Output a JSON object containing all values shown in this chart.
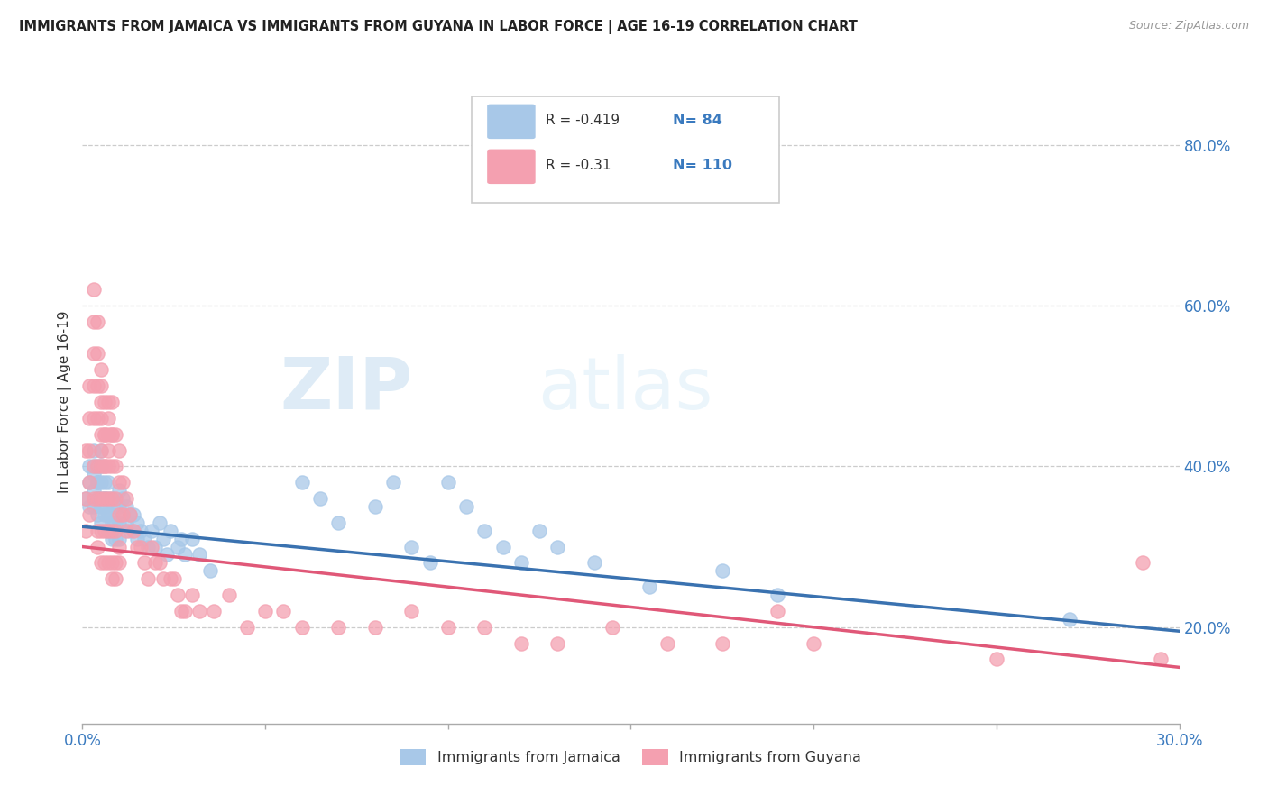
{
  "title": "IMMIGRANTS FROM JAMAICA VS IMMIGRANTS FROM GUYANA IN LABOR FORCE | AGE 16-19 CORRELATION CHART",
  "source": "Source: ZipAtlas.com",
  "xlabel_jamaica": "Immigrants from Jamaica",
  "xlabel_guyana": "Immigrants from Guyana",
  "ylabel": "In Labor Force | Age 16-19",
  "watermark_zip": "ZIP",
  "watermark_atlas": "atlas",
  "xlim": [
    0.0,
    0.3
  ],
  "ylim": [
    0.08,
    0.88
  ],
  "xticks": [
    0.0,
    0.05,
    0.1,
    0.15,
    0.2,
    0.25,
    0.3
  ],
  "xtick_labels": [
    "0.0%",
    "",
    "",
    "",
    "",
    "",
    "30.0%"
  ],
  "yticks_right": [
    0.2,
    0.4,
    0.6,
    0.8
  ],
  "ytick_labels_right": [
    "20.0%",
    "40.0%",
    "60.0%",
    "80.0%"
  ],
  "jamaica_color": "#a8c8e8",
  "guyana_color": "#f4a0b0",
  "jamaica_line_color": "#3a72b0",
  "guyana_line_color": "#e05878",
  "R_jamaica": -0.419,
  "N_jamaica": 84,
  "R_guyana": -0.31,
  "N_guyana": 110,
  "jamaica_x": [
    0.001,
    0.002,
    0.002,
    0.002,
    0.003,
    0.003,
    0.003,
    0.003,
    0.003,
    0.004,
    0.004,
    0.004,
    0.004,
    0.004,
    0.004,
    0.005,
    0.005,
    0.005,
    0.005,
    0.005,
    0.005,
    0.006,
    0.006,
    0.006,
    0.006,
    0.006,
    0.007,
    0.007,
    0.007,
    0.007,
    0.008,
    0.008,
    0.008,
    0.008,
    0.009,
    0.009,
    0.009,
    0.01,
    0.01,
    0.01,
    0.01,
    0.011,
    0.011,
    0.012,
    0.012,
    0.013,
    0.013,
    0.014,
    0.015,
    0.015,
    0.016,
    0.017,
    0.018,
    0.019,
    0.02,
    0.021,
    0.022,
    0.023,
    0.024,
    0.026,
    0.027,
    0.028,
    0.03,
    0.032,
    0.035,
    0.06,
    0.065,
    0.07,
    0.08,
    0.085,
    0.09,
    0.095,
    0.1,
    0.105,
    0.11,
    0.115,
    0.12,
    0.125,
    0.13,
    0.14,
    0.155,
    0.175,
    0.19,
    0.27
  ],
  "jamaica_y": [
    0.36,
    0.4,
    0.38,
    0.35,
    0.42,
    0.39,
    0.37,
    0.35,
    0.4,
    0.38,
    0.36,
    0.34,
    0.4,
    0.38,
    0.36,
    0.38,
    0.36,
    0.35,
    0.33,
    0.42,
    0.4,
    0.36,
    0.34,
    0.38,
    0.36,
    0.35,
    0.38,
    0.36,
    0.34,
    0.32,
    0.36,
    0.34,
    0.33,
    0.31,
    0.35,
    0.33,
    0.31,
    0.37,
    0.35,
    0.33,
    0.31,
    0.36,
    0.34,
    0.35,
    0.33,
    0.34,
    0.32,
    0.34,
    0.33,
    0.31,
    0.32,
    0.31,
    0.3,
    0.32,
    0.3,
    0.33,
    0.31,
    0.29,
    0.32,
    0.3,
    0.31,
    0.29,
    0.31,
    0.29,
    0.27,
    0.38,
    0.36,
    0.33,
    0.35,
    0.38,
    0.3,
    0.28,
    0.38,
    0.35,
    0.32,
    0.3,
    0.28,
    0.32,
    0.3,
    0.28,
    0.25,
    0.27,
    0.24,
    0.21
  ],
  "guyana_x": [
    0.001,
    0.001,
    0.001,
    0.002,
    0.002,
    0.002,
    0.002,
    0.002,
    0.003,
    0.003,
    0.003,
    0.003,
    0.003,
    0.003,
    0.003,
    0.004,
    0.004,
    0.004,
    0.004,
    0.004,
    0.004,
    0.004,
    0.004,
    0.005,
    0.005,
    0.005,
    0.005,
    0.005,
    0.005,
    0.005,
    0.005,
    0.005,
    0.005,
    0.006,
    0.006,
    0.006,
    0.006,
    0.006,
    0.006,
    0.006,
    0.006,
    0.007,
    0.007,
    0.007,
    0.007,
    0.007,
    0.007,
    0.007,
    0.007,
    0.008,
    0.008,
    0.008,
    0.008,
    0.008,
    0.008,
    0.008,
    0.008,
    0.009,
    0.009,
    0.009,
    0.009,
    0.009,
    0.009,
    0.01,
    0.01,
    0.01,
    0.01,
    0.01,
    0.011,
    0.011,
    0.012,
    0.012,
    0.013,
    0.014,
    0.015,
    0.016,
    0.017,
    0.018,
    0.019,
    0.02,
    0.021,
    0.022,
    0.024,
    0.025,
    0.026,
    0.027,
    0.028,
    0.03,
    0.032,
    0.036,
    0.04,
    0.045,
    0.05,
    0.055,
    0.06,
    0.07,
    0.08,
    0.09,
    0.1,
    0.11,
    0.12,
    0.13,
    0.145,
    0.16,
    0.175,
    0.19,
    0.2,
    0.25,
    0.29,
    0.295
  ],
  "guyana_y": [
    0.42,
    0.36,
    0.32,
    0.5,
    0.46,
    0.42,
    0.38,
    0.34,
    0.62,
    0.58,
    0.54,
    0.5,
    0.46,
    0.4,
    0.36,
    0.58,
    0.54,
    0.5,
    0.46,
    0.4,
    0.36,
    0.32,
    0.3,
    0.52,
    0.48,
    0.44,
    0.4,
    0.36,
    0.32,
    0.28,
    0.5,
    0.46,
    0.42,
    0.48,
    0.44,
    0.4,
    0.36,
    0.32,
    0.28,
    0.44,
    0.4,
    0.48,
    0.44,
    0.4,
    0.36,
    0.32,
    0.28,
    0.46,
    0.42,
    0.48,
    0.44,
    0.4,
    0.36,
    0.32,
    0.28,
    0.26,
    0.44,
    0.44,
    0.4,
    0.36,
    0.32,
    0.28,
    0.26,
    0.42,
    0.38,
    0.34,
    0.3,
    0.28,
    0.38,
    0.34,
    0.36,
    0.32,
    0.34,
    0.32,
    0.3,
    0.3,
    0.28,
    0.26,
    0.3,
    0.28,
    0.28,
    0.26,
    0.26,
    0.26,
    0.24,
    0.22,
    0.22,
    0.24,
    0.22,
    0.22,
    0.24,
    0.2,
    0.22,
    0.22,
    0.2,
    0.2,
    0.2,
    0.22,
    0.2,
    0.2,
    0.18,
    0.18,
    0.2,
    0.18,
    0.18,
    0.22,
    0.18,
    0.16,
    0.28,
    0.16
  ]
}
